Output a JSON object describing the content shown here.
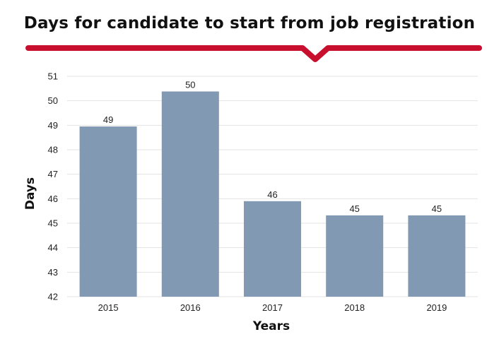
{
  "chart_data": {
    "type": "bar",
    "title": "Days for candidate to start from job registration",
    "xlabel": "Years",
    "ylabel": "Days",
    "categories": [
      "2015",
      "2016",
      "2017",
      "2018",
      "2019"
    ],
    "values": [
      48.95,
      50.38,
      45.9,
      45.32,
      45.32
    ],
    "value_labels": [
      "49",
      "50",
      "46",
      "45",
      "45"
    ],
    "y_ticks": [
      "42",
      "43",
      "44",
      "45",
      "46",
      "47",
      "48",
      "49",
      "50",
      "51"
    ],
    "ylim": [
      42,
      51
    ],
    "grid": true,
    "legend": "none",
    "colors": {
      "bar": "#8299b4",
      "accent_line": "#c8102e",
      "grid": "#e3e3e3"
    }
  }
}
